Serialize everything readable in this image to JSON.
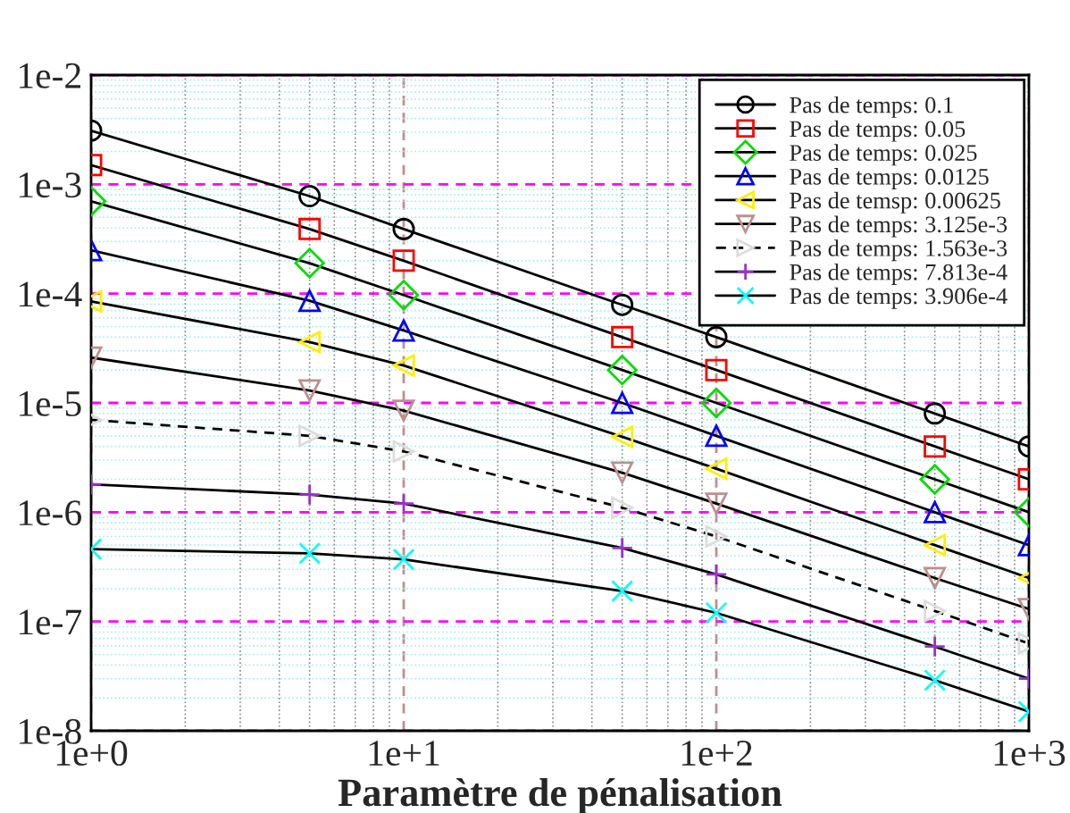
{
  "chart_data": {
    "type": "line",
    "xlabel": "Paramètre de pénalisation",
    "log": "xy",
    "grid": true,
    "legend": "top right",
    "x": [
      1,
      5,
      10,
      50,
      100,
      500,
      1000
    ],
    "xlim": [
      1,
      1000
    ],
    "ylim": [
      1e-08,
      0.01
    ],
    "xticks": [
      {
        "value": 1,
        "label": "1e+0"
      },
      {
        "value": 2,
        "label": null
      },
      {
        "value": 3,
        "label": null
      },
      {
        "value": 4,
        "label": null
      },
      {
        "value": 5,
        "label": null
      },
      {
        "value": 6,
        "label": null
      },
      {
        "value": 7,
        "label": null
      },
      {
        "value": 8,
        "label": null
      },
      {
        "value": 9,
        "label": null
      },
      {
        "value": 10,
        "label": "1e+1"
      },
      {
        "value": 20,
        "label": null
      },
      {
        "value": 30,
        "label": null
      },
      {
        "value": 40,
        "label": null
      },
      {
        "value": 50,
        "label": null
      },
      {
        "value": 60,
        "label": null
      },
      {
        "value": 70,
        "label": null
      },
      {
        "value": 80,
        "label": null
      },
      {
        "value": 90,
        "label": null
      },
      {
        "value": 100,
        "label": "1e+2"
      },
      {
        "value": 200,
        "label": null
      },
      {
        "value": 300,
        "label": null
      },
      {
        "value": 400,
        "label": null
      },
      {
        "value": 500,
        "label": null
      },
      {
        "value": 600,
        "label": null
      },
      {
        "value": 700,
        "label": null
      },
      {
        "value": 800,
        "label": null
      },
      {
        "value": 900,
        "label": null
      },
      {
        "value": 1000,
        "label": "1e+3"
      }
    ],
    "yticks": [
      {
        "value": 1e-08,
        "label": "1e-8"
      },
      {
        "value": 2e-08,
        "label": null
      },
      {
        "value": 3e-08,
        "label": null
      },
      {
        "value": 4e-08,
        "label": null
      },
      {
        "value": 5e-08,
        "label": null
      },
      {
        "value": 6e-08,
        "label": null
      },
      {
        "value": 7e-08,
        "label": null
      },
      {
        "value": 8e-08,
        "label": null
      },
      {
        "value": 9e-08,
        "label": null
      },
      {
        "value": 1e-07,
        "label": "1e-7"
      },
      {
        "value": 2e-07,
        "label": null
      },
      {
        "value": 3e-07,
        "label": null
      },
      {
        "value": 4e-07,
        "label": null
      },
      {
        "value": 5e-07,
        "label": null
      },
      {
        "value": 6e-07,
        "label": null
      },
      {
        "value": 7e-07,
        "label": null
      },
      {
        "value": 8e-07,
        "label": null
      },
      {
        "value": 9e-07,
        "label": null
      },
      {
        "value": 1e-06,
        "label": "1e-6"
      },
      {
        "value": 2e-06,
        "label": null
      },
      {
        "value": 3e-06,
        "label": null
      },
      {
        "value": 4e-06,
        "label": null
      },
      {
        "value": 5e-06,
        "label": null
      },
      {
        "value": 6e-06,
        "label": null
      },
      {
        "value": 7e-06,
        "label": null
      },
      {
        "value": 8e-06,
        "label": null
      },
      {
        "value": 9e-06,
        "label": null
      },
      {
        "value": 1e-05,
        "label": "1e-5"
      },
      {
        "value": 2e-05,
        "label": null
      },
      {
        "value": 3e-05,
        "label": null
      },
      {
        "value": 4e-05,
        "label": null
      },
      {
        "value": 5e-05,
        "label": null
      },
      {
        "value": 6e-05,
        "label": null
      },
      {
        "value": 7e-05,
        "label": null
      },
      {
        "value": 8e-05,
        "label": null
      },
      {
        "value": 9e-05,
        "label": null
      },
      {
        "value": 0.0001,
        "label": "1e-4"
      },
      {
        "value": 0.0002,
        "label": null
      },
      {
        "value": 0.0003,
        "label": null
      },
      {
        "value": 0.0004,
        "label": null
      },
      {
        "value": 0.0005,
        "label": null
      },
      {
        "value": 0.0006,
        "label": null
      },
      {
        "value": 0.0007,
        "label": null
      },
      {
        "value": 0.0008,
        "label": null
      },
      {
        "value": 0.0009,
        "label": null
      },
      {
        "value": 0.001,
        "label": "1e-3"
      },
      {
        "value": 0.002,
        "label": null
      },
      {
        "value": 0.003,
        "label": null
      },
      {
        "value": 0.004,
        "label": null
      },
      {
        "value": 0.005,
        "label": null
      },
      {
        "value": 0.006,
        "label": null
      },
      {
        "value": 0.007,
        "label": null
      },
      {
        "value": 0.008,
        "label": null
      },
      {
        "value": 0.009,
        "label": null
      },
      {
        "value": 0.01,
        "label": "1e-2"
      }
    ],
    "series": [
      {
        "name": "Pas de temps: 0.1",
        "color": "#000000",
        "marker": "circle",
        "values": [
          0.0031,
          0.00078,
          0.00039,
          7.9e-05,
          4e-05,
          8e-06,
          4e-06
        ]
      },
      {
        "name": "Pas de temps: 0.05",
        "color": "#ff0000",
        "marker": "square",
        "values": [
          0.0015,
          0.00039,
          0.0002,
          4e-05,
          2e-05,
          4e-06,
          2e-06
        ]
      },
      {
        "name": "Pas de temps: 0.025",
        "color": "#00dd00",
        "marker": "diamond",
        "values": [
          0.0007,
          0.00019,
          9.7e-05,
          2e-05,
          1e-05,
          2e-06,
          1e-06
        ]
      },
      {
        "name": "Pas de temps: 0.0125",
        "color": "#0000ff",
        "marker": "triangle",
        "values": [
          0.00025,
          8.6e-05,
          4.6e-05,
          1e-05,
          5e-06,
          1e-06,
          5e-07
        ]
      },
      {
        "name": "Pas de temsp: 0.00625",
        "color": "#ffee00",
        "marker": "triangle-left",
        "values": [
          8.5e-05,
          3.6e-05,
          2.2e-05,
          4.9e-06,
          2.5e-06,
          5e-07,
          2.5e-07
        ]
      },
      {
        "name": "Pas de temps: 3.125e-3",
        "color": "#bc8f8f",
        "marker": "triangle-down",
        "values": [
          2.6e-05,
          1.3e-05,
          8.5e-06,
          2.3e-06,
          1.2e-06,
          2.5e-07,
          1.3e-07
        ]
      },
      {
        "name": "Pas de temps: 1.563e-3",
        "color": "#dcdcdc",
        "marker": "triangle-right",
        "line_style": "dashed",
        "values": [
          7e-06,
          5e-06,
          3.6e-06,
          1.1e-06,
          6e-07,
          1.25e-07,
          6.3e-08
        ]
      },
      {
        "name": "Pas de temps: 7.813e-4",
        "color": "#9932cc",
        "marker": "plus",
        "values": [
          1.8e-06,
          1.45e-06,
          1.2e-06,
          4.7e-07,
          2.7e-07,
          5.9e-08,
          3e-08
        ]
      },
      {
        "name": "Pas de temps: 3.906e-4",
        "color": "#00ffff",
        "marker": "cross",
        "values": [
          4.6e-07,
          4.2e-07,
          3.7e-07,
          1.9e-07,
          1.2e-07,
          2.9e-08,
          1.5e-08
        ]
      }
    ]
  }
}
